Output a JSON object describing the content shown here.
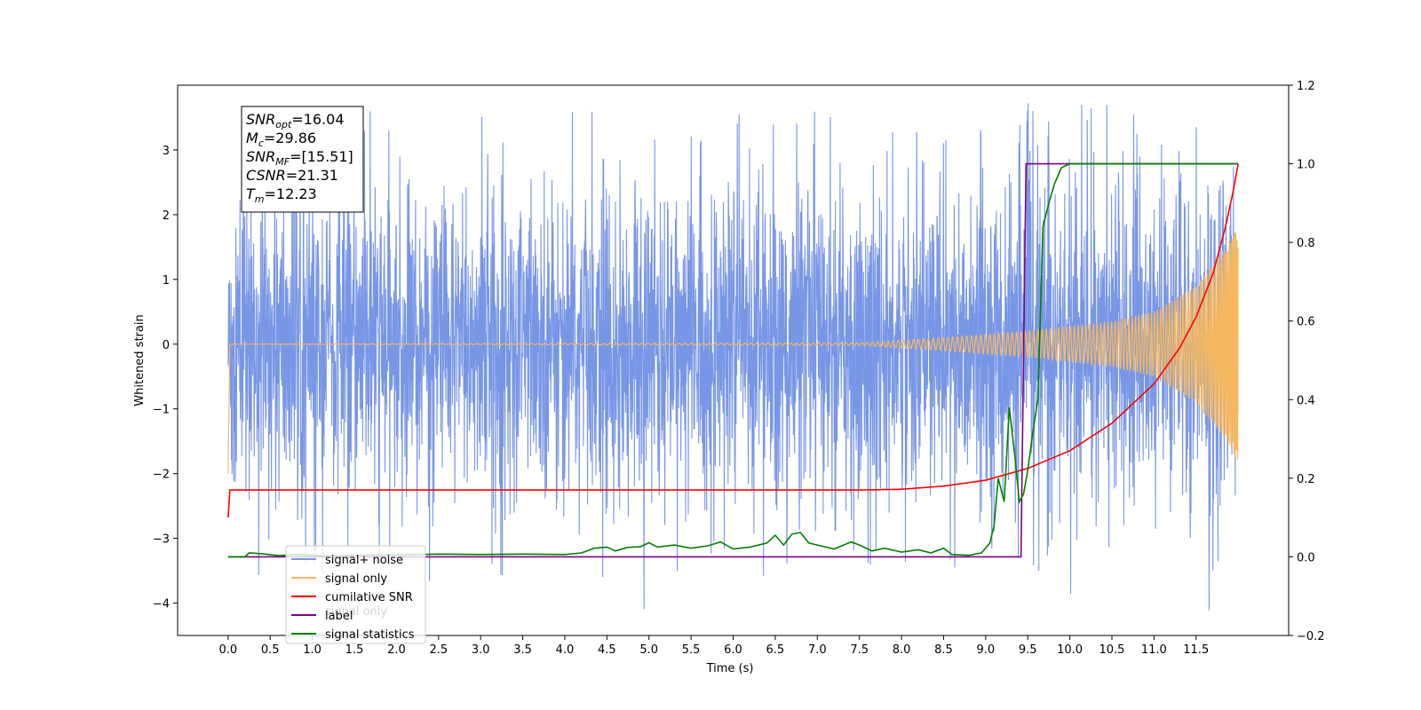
{
  "chart_data": {
    "type": "line",
    "xlabel": "Time (s)",
    "ylabel": "Whitened strain",
    "xlim": [
      -0.6,
      12.6
    ],
    "ylim": [
      -4.5,
      4.0
    ],
    "y2lim": [
      -0.2,
      1.2
    ],
    "x_ticks": [
      "0.0",
      "0.5",
      "1.0",
      "1.5",
      "2.0",
      "2.5",
      "3.0",
      "3.5",
      "4.0",
      "4.5",
      "5.0",
      "5.5",
      "6.0",
      "6.5",
      "7.0",
      "7.5",
      "8.0",
      "8.5",
      "9.0",
      "9.5",
      "10.0",
      "10.5",
      "11.0",
      "11.5"
    ],
    "y_ticks": [
      "3",
      "2",
      "1",
      "0",
      "−1",
      "−2",
      "−3",
      "−4"
    ],
    "y2_ticks": [
      "1.2",
      "1.0",
      "0.8",
      "0.6",
      "0.4",
      "0.2",
      "0.0",
      "−0.2"
    ],
    "annotation": {
      "lines": [
        {
          "main": "SNR",
          "sub": "opt",
          "value": "=16.04"
        },
        {
          "main": "M",
          "sub": "c",
          "value": "=29.86"
        },
        {
          "main": "SNR",
          "sub": "MF",
          "value": "=[15.51]"
        },
        {
          "main": "CSNR",
          "sub": "",
          "value": "=21.31"
        },
        {
          "main": "T",
          "sub": "m",
          "value": "=12.23"
        }
      ]
    },
    "legend_position": "lower-left",
    "legend": [
      "signal+ noise",
      "signal only",
      "cumilative SNR",
      "label",
      "signal statistics"
    ],
    "hidden_legend_text": "signal only",
    "series": [
      {
        "name": "signal+ noise",
        "axis": "left",
        "color": "#7896e6",
        "x_range": [
          0.0,
          12.0
        ],
        "envelope_typical": 1.9,
        "envelope_peak": 3.6,
        "min_value": -4.1
      },
      {
        "name": "signal only",
        "axis": "left",
        "color": "#f5b860",
        "x_range": [
          0.0,
          12.0
        ],
        "amplitude_points": [
          [
            0.0,
            0.0
          ],
          [
            7.5,
            0.02
          ],
          [
            8.5,
            0.1
          ],
          [
            9.5,
            0.2
          ],
          [
            10.5,
            0.35
          ],
          [
            11.0,
            0.5
          ],
          [
            11.5,
            0.9
          ],
          [
            11.8,
            1.4
          ],
          [
            12.0,
            1.8
          ]
        ]
      },
      {
        "name": "cumilative SNR",
        "axis": "right",
        "color": "#ff0000",
        "points": [
          [
            0.0,
            0.1
          ],
          [
            0.02,
            0.17
          ],
          [
            7.5,
            0.17
          ],
          [
            8.0,
            0.172
          ],
          [
            8.5,
            0.18
          ],
          [
            9.0,
            0.195
          ],
          [
            9.5,
            0.225
          ],
          [
            10.0,
            0.27
          ],
          [
            10.5,
            0.34
          ],
          [
            11.0,
            0.44
          ],
          [
            11.3,
            0.53
          ],
          [
            11.5,
            0.61
          ],
          [
            11.7,
            0.72
          ],
          [
            11.85,
            0.84
          ],
          [
            11.95,
            0.94
          ],
          [
            12.0,
            1.0
          ]
        ]
      },
      {
        "name": "label",
        "axis": "right",
        "color": "#800080",
        "points": [
          [
            0.0,
            0.0
          ],
          [
            9.42,
            0.0
          ],
          [
            9.48,
            1.0
          ],
          [
            12.0,
            1.0
          ]
        ]
      },
      {
        "name": "signal statistics",
        "axis": "right",
        "color": "#008000",
        "points": [
          [
            0.0,
            0.0
          ],
          [
            0.2,
            0.0
          ],
          [
            0.25,
            0.01
          ],
          [
            0.4,
            0.008
          ],
          [
            0.6,
            0.003
          ],
          [
            0.8,
            0.006
          ],
          [
            1.0,
            0.004
          ],
          [
            1.2,
            0.002
          ],
          [
            1.5,
            0.004
          ],
          [
            2.0,
            0.005
          ],
          [
            2.5,
            0.007
          ],
          [
            3.0,
            0.006
          ],
          [
            3.5,
            0.007
          ],
          [
            4.0,
            0.006
          ],
          [
            4.2,
            0.01
          ],
          [
            4.35,
            0.022
          ],
          [
            4.5,
            0.025
          ],
          [
            4.6,
            0.015
          ],
          [
            4.75,
            0.024
          ],
          [
            4.9,
            0.026
          ],
          [
            5.0,
            0.036
          ],
          [
            5.1,
            0.025
          ],
          [
            5.3,
            0.03
          ],
          [
            5.5,
            0.022
          ],
          [
            5.7,
            0.028
          ],
          [
            5.85,
            0.038
          ],
          [
            6.0,
            0.02
          ],
          [
            6.2,
            0.025
          ],
          [
            6.4,
            0.035
          ],
          [
            6.5,
            0.055
          ],
          [
            6.6,
            0.03
          ],
          [
            6.7,
            0.058
          ],
          [
            6.8,
            0.062
          ],
          [
            6.9,
            0.035
          ],
          [
            7.0,
            0.03
          ],
          [
            7.2,
            0.02
          ],
          [
            7.4,
            0.038
          ],
          [
            7.5,
            0.03
          ],
          [
            7.65,
            0.015
          ],
          [
            7.8,
            0.022
          ],
          [
            8.0,
            0.012
          ],
          [
            8.2,
            0.018
          ],
          [
            8.35,
            0.01
          ],
          [
            8.5,
            0.022
          ],
          [
            8.6,
            0.006
          ],
          [
            8.8,
            0.004
          ],
          [
            8.95,
            0.01
          ],
          [
            9.05,
            0.035
          ],
          [
            9.1,
            0.08
          ],
          [
            9.15,
            0.2
          ],
          [
            9.22,
            0.14
          ],
          [
            9.28,
            0.38
          ],
          [
            9.35,
            0.25
          ],
          [
            9.4,
            0.14
          ],
          [
            9.45,
            0.16
          ],
          [
            9.5,
            0.22
          ],
          [
            9.55,
            0.3
          ],
          [
            9.62,
            0.4
          ],
          [
            9.68,
            0.84
          ],
          [
            9.75,
            0.9
          ],
          [
            9.82,
            0.95
          ],
          [
            9.9,
            0.99
          ],
          [
            10.0,
            1.0
          ],
          [
            12.0,
            1.0
          ]
        ]
      }
    ]
  }
}
